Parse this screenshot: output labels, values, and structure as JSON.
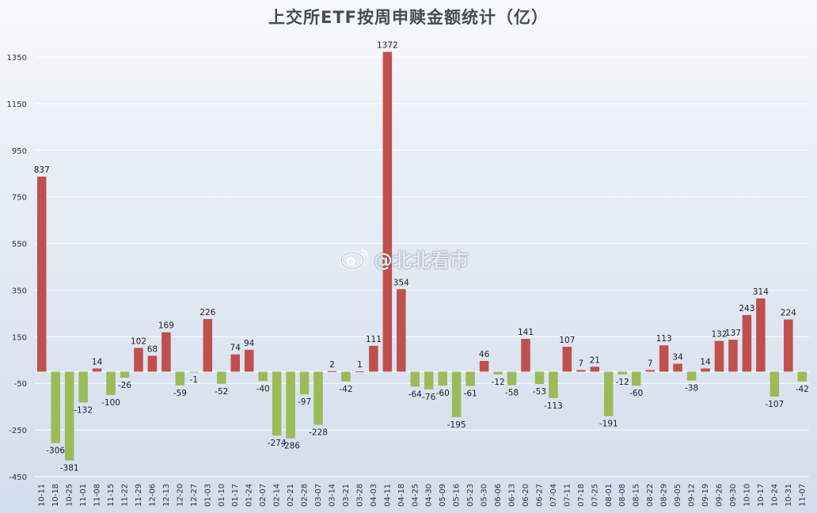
{
  "chart_data": {
    "type": "bar",
    "title": "上交所ETF按周申赎金额统计（亿）",
    "xlabel": "",
    "ylabel": "",
    "ylim": [
      -450,
      1350
    ],
    "yticks": [
      1350,
      1150,
      950,
      750,
      550,
      350,
      150,
      -50,
      -250,
      -450
    ],
    "grid": true,
    "legend": "none",
    "positive_color": "#c0504d",
    "negative_color": "#9bbb59",
    "categories": [
      "10-11",
      "10-18",
      "10-25",
      "11-01",
      "11-08",
      "11-15",
      "11-22",
      "11-29",
      "12-06",
      "12-13",
      "12-20",
      "12-27",
      "01-03",
      "01-10",
      "01-17",
      "01-24",
      "02-07",
      "02-14",
      "02-21",
      "02-28",
      "03-07",
      "03-14",
      "03-21",
      "03-28",
      "04-03",
      "04-11",
      "04-18",
      "04-25",
      "04-30",
      "05-09",
      "05-16",
      "05-23",
      "05-30",
      "06-06",
      "06-13",
      "06-20",
      "06-27",
      "07-04",
      "07-11",
      "07-18",
      "07-25",
      "08-01",
      "08-08",
      "08-15",
      "08-22",
      "08-29",
      "09-05",
      "09-12",
      "09-19",
      "09-26",
      "09-30",
      "10-10",
      "10-17",
      "10-24",
      "10-31",
      "11-07"
    ],
    "values": [
      837,
      -306,
      -381,
      -132,
      14,
      -100,
      -26,
      102,
      68,
      169,
      -59,
      -1,
      226,
      -52,
      74,
      94,
      -40,
      -274,
      -286,
      -97,
      -228,
      2,
      -42,
      1,
      111,
      1372,
      354,
      -64,
      -76,
      -60,
      -195,
      -61,
      46,
      -12,
      -58,
      141,
      -53,
      -113,
      107,
      7,
      21,
      -191,
      -12,
      -60,
      7,
      113,
      34,
      -38,
      14,
      132,
      137,
      243,
      314,
      -107,
      224,
      -42
    ]
  },
  "watermark": {
    "text": "@北北看市",
    "icon": "weibo-icon"
  }
}
